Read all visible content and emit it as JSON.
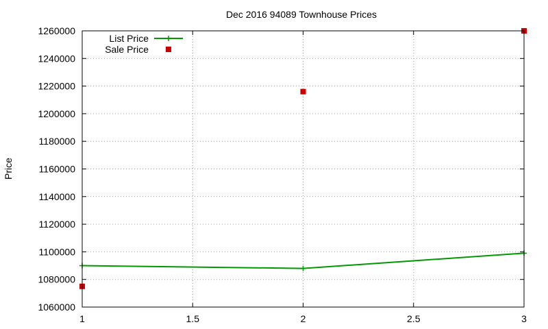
{
  "chart_data": {
    "type": "line",
    "title": "Dec 2016 94089 Townhouse Prices",
    "xlabel": "",
    "ylabel": "Price",
    "xlim": [
      1,
      3
    ],
    "ylim": [
      1060000,
      1260000
    ],
    "x_ticks": [
      1,
      1.5,
      2,
      2.5,
      3
    ],
    "x_tick_labels": [
      "1",
      "1.5",
      "2",
      "2.5",
      "3"
    ],
    "y_ticks": [
      1060000,
      1080000,
      1100000,
      1120000,
      1140000,
      1160000,
      1180000,
      1200000,
      1220000,
      1240000,
      1260000
    ],
    "y_tick_labels": [
      "1060000",
      "1080000",
      "1100000",
      "1120000",
      "1140000",
      "1160000",
      "1180000",
      "1200000",
      "1220000",
      "1240000",
      "1260000"
    ],
    "grid": true,
    "legend_position": "top-left",
    "series": [
      {
        "name": "List Price",
        "style": "line-with-plus-markers",
        "color": "#009900",
        "x": [
          1,
          2,
          3
        ],
        "y": [
          1090000,
          1088000,
          1099000
        ]
      },
      {
        "name": "Sale Price",
        "style": "square-markers",
        "color": "#cc0000",
        "x": [
          1,
          2,
          3
        ],
        "y": [
          1075000,
          1216000,
          1260000
        ]
      }
    ]
  }
}
